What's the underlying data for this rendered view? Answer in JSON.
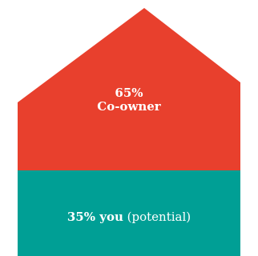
{
  "colors": {
    "coowner": "#e8402d",
    "you": "#009f95",
    "label_text": "#ffffff"
  },
  "coowner": {
    "percent": "65%",
    "label": "Co-owner",
    "share": 0.65
  },
  "you": {
    "share_label": "35% you",
    "qualifier": "(potential)",
    "share": 0.35
  }
}
